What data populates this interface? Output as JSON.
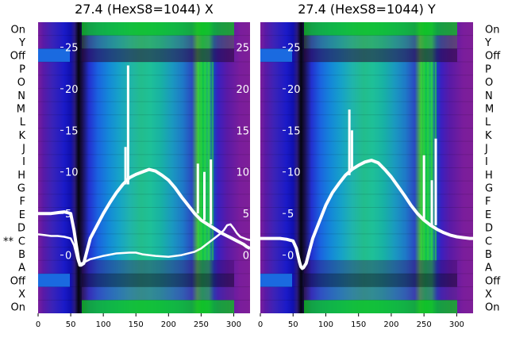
{
  "chart_data": [
    {
      "type": "heatmap",
      "title": "27.4 (HexS8=1044) X",
      "xlim": [
        0,
        325
      ],
      "x_ticks": [
        0,
        50,
        100,
        150,
        200,
        250,
        300
      ],
      "ylim": [
        -7,
        28
      ],
      "y_ticks": [
        0,
        5,
        10,
        15,
        20,
        25
      ],
      "rows": [
        "On",
        "Y",
        "Off",
        "P",
        "O",
        "N",
        "M",
        "L",
        "K",
        "J",
        "I",
        "H",
        "G",
        "F",
        "E",
        "D",
        "C",
        "B",
        "A",
        "Off",
        "X",
        "On"
      ],
      "marked_row": "C",
      "marker": "**",
      "series": [
        {
          "x": [
            0,
            10,
            20,
            30,
            40,
            50,
            55,
            58,
            60,
            62,
            64,
            66,
            70,
            75,
            80,
            90,
            100,
            110,
            120,
            130,
            140,
            150,
            160,
            170,
            180,
            190,
            200,
            210,
            220,
            230,
            240,
            250,
            260,
            270,
            280,
            290,
            295,
            300,
            305,
            310,
            315,
            320,
            325
          ],
          "y": [
            5.0,
            5.0,
            5.0,
            5.1,
            5.2,
            5.0,
            3.0,
            1.5,
            0.5,
            -0.5,
            -1.2,
            -1.2,
            -1.0,
            0.5,
            2.0,
            3.5,
            5.0,
            6.3,
            7.5,
            8.5,
            9.3,
            9.7,
            10.0,
            10.3,
            10.1,
            9.6,
            9.0,
            8.1,
            7.0,
            6.0,
            5.0,
            4.2,
            3.7,
            3.2,
            2.7,
            2.3,
            2.1,
            1.9,
            1.7,
            1.5,
            1.3,
            1.0,
            0.8
          ]
        },
        {
          "x": [
            0,
            10,
            20,
            30,
            40,
            50,
            55,
            58,
            60,
            62,
            64,
            66,
            70,
            75,
            80,
            90,
            100,
            120,
            140,
            150,
            160,
            170,
            180,
            200,
            220,
            240,
            250,
            260,
            270,
            280,
            285,
            290,
            295,
            300,
            305,
            310,
            320,
            325
          ],
          "y": [
            2.5,
            2.4,
            2.3,
            2.3,
            2.2,
            2.0,
            1.2,
            0.3,
            -0.4,
            -0.9,
            -1.0,
            -1.0,
            -0.9,
            -0.7,
            -0.5,
            -0.3,
            -0.1,
            0.2,
            0.3,
            0.3,
            0.1,
            0.0,
            -0.1,
            -0.2,
            0.0,
            0.4,
            0.8,
            1.4,
            2.0,
            2.6,
            3.0,
            3.6,
            3.7,
            3.2,
            2.6,
            2.2,
            1.9,
            1.8
          ]
        }
      ],
      "spikes": [
        {
          "x": 134,
          "y_top": 13.0
        },
        {
          "x": 138,
          "y_top": 22.8
        },
        {
          "x": 245,
          "y_top": 11.0
        },
        {
          "x": 255,
          "y_top": 10.0
        },
        {
          "x": 265,
          "y_top": 11.5
        }
      ]
    },
    {
      "type": "heatmap",
      "title": "27.4 (HexS8=1044) Y",
      "xlim": [
        0,
        325
      ],
      "x_ticks": [
        0,
        50,
        100,
        150,
        200,
        250,
        300
      ],
      "ylim": [
        -7,
        28
      ],
      "y_ticks": [
        0,
        5,
        10,
        15,
        20,
        25
      ],
      "rows": [
        "On",
        "Y",
        "Off",
        "P",
        "O",
        "N",
        "M",
        "L",
        "K",
        "J",
        "I",
        "H",
        "G",
        "F",
        "E",
        "D",
        "C",
        "B",
        "A",
        "Off",
        "X",
        "On"
      ],
      "series": [
        {
          "x": [
            0,
            10,
            20,
            30,
            40,
            50,
            55,
            58,
            60,
            62,
            64,
            66,
            70,
            75,
            80,
            90,
            100,
            110,
            120,
            130,
            140,
            150,
            160,
            170,
            180,
            190,
            200,
            210,
            220,
            230,
            240,
            250,
            260,
            270,
            280,
            290,
            300,
            310,
            320,
            325
          ],
          "y": [
            2.0,
            2.0,
            2.0,
            2.0,
            1.9,
            1.7,
            0.8,
            -0.2,
            -0.9,
            -1.4,
            -1.6,
            -1.5,
            -1.0,
            0.5,
            2.0,
            4.0,
            6.0,
            7.5,
            8.6,
            9.6,
            10.3,
            10.8,
            11.2,
            11.4,
            11.1,
            10.3,
            9.4,
            8.3,
            7.2,
            6.0,
            5.0,
            4.2,
            3.6,
            3.1,
            2.7,
            2.4,
            2.2,
            2.1,
            2.0,
            2.0
          ]
        }
      ],
      "spikes": [
        {
          "x": 136,
          "y_top": 17.5
        },
        {
          "x": 140,
          "y_top": 15.0
        },
        {
          "x": 250,
          "y_top": 12.0
        },
        {
          "x": 262,
          "y_top": 9.0
        },
        {
          "x": 268,
          "y_top": 14.0
        }
      ]
    }
  ]
}
